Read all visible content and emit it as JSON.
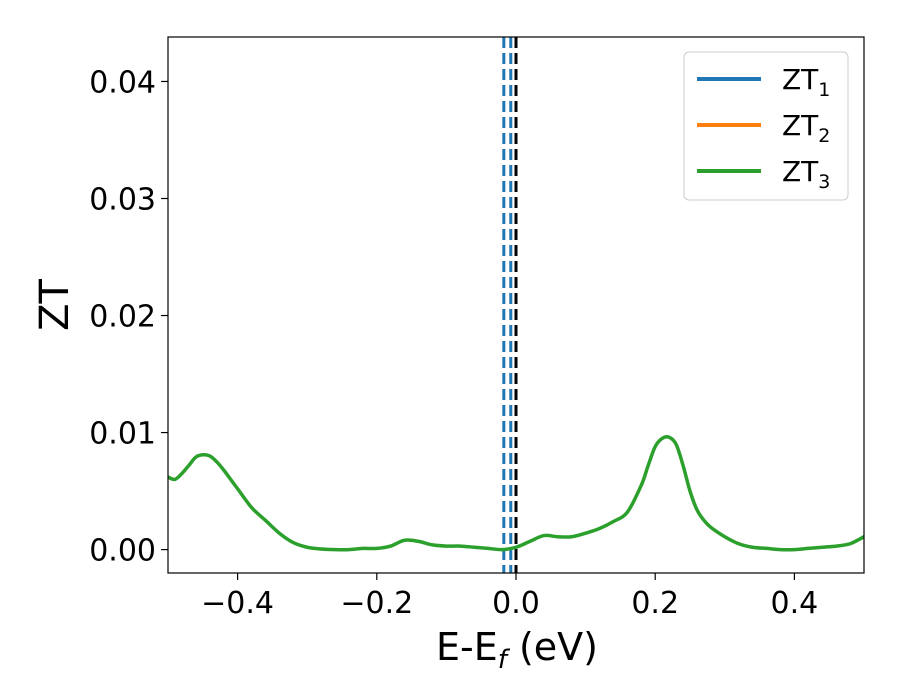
{
  "chart_data": {
    "type": "line",
    "xlabel": "E-E",
    "xlabel_sub": "f",
    "xlabel_unit": " (eV)",
    "ylabel": "ZT",
    "xlim": [
      -0.5,
      0.5
    ],
    "ylim": [
      -0.002,
      0.0438
    ],
    "xticks": [
      -0.4,
      -0.2,
      0.0,
      0.2,
      0.4
    ],
    "xtick_labels": [
      "−0.4",
      "−0.2",
      "0.0",
      "0.2",
      "0.4"
    ],
    "yticks": [
      0.0,
      0.01,
      0.02,
      0.03,
      0.04
    ],
    "ytick_labels": [
      "0.00",
      "0.01",
      "0.02",
      "0.03",
      "0.04"
    ],
    "grid": false,
    "legend_position": "top-right",
    "legend": [
      {
        "base": "ZT",
        "sub": "1",
        "color": "#1f77b4"
      },
      {
        "base": "ZT",
        "sub": "2",
        "color": "#ff7f0e"
      },
      {
        "base": "ZT",
        "sub": "3",
        "color": "#2ca02c"
      }
    ],
    "vlines": [
      {
        "x": -0.0175,
        "color": "#1f77b4",
        "style": "dashed"
      },
      {
        "x": -0.0075,
        "color": "#1f77b4",
        "style": "dashed"
      },
      {
        "x": 0.0,
        "color": "#000000",
        "style": "dashed"
      }
    ],
    "series": [
      {
        "color": "#2ca02c",
        "x": [
          -0.5,
          -0.49,
          -0.48,
          -0.47,
          -0.46,
          -0.45,
          -0.44,
          -0.43,
          -0.42,
          -0.41,
          -0.4,
          -0.38,
          -0.36,
          -0.34,
          -0.32,
          -0.3,
          -0.28,
          -0.26,
          -0.24,
          -0.22,
          -0.2,
          -0.18,
          -0.16,
          -0.14,
          -0.12,
          -0.1,
          -0.08,
          -0.06,
          -0.04,
          -0.02,
          0.0,
          0.02,
          0.04,
          0.06,
          0.08,
          0.1,
          0.12,
          0.14,
          0.16,
          0.18,
          0.19,
          0.2,
          0.21,
          0.22,
          0.23,
          0.24,
          0.25,
          0.26,
          0.27,
          0.28,
          0.3,
          0.32,
          0.34,
          0.36,
          0.38,
          0.4,
          0.42,
          0.44,
          0.46,
          0.48,
          0.5
        ],
        "y": [
          0.0062,
          0.006,
          0.0065,
          0.0072,
          0.0079,
          0.0081,
          0.008,
          0.0075,
          0.0068,
          0.006,
          0.0052,
          0.0036,
          0.0025,
          0.0014,
          0.0006,
          0.0002,
          5e-05,
          0.0,
          0.0,
          0.0001,
          0.0001,
          0.0003,
          0.0008,
          0.0007,
          0.0004,
          0.0003,
          0.0003,
          0.0002,
          0.0001,
          0.0,
          0.0002,
          0.0007,
          0.0012,
          0.0011,
          0.0011,
          0.0014,
          0.0018,
          0.0024,
          0.0032,
          0.0055,
          0.0072,
          0.0088,
          0.0095,
          0.0096,
          0.009,
          0.0072,
          0.005,
          0.0034,
          0.0025,
          0.0019,
          0.0011,
          0.0005,
          0.0002,
          0.0001,
          0.0,
          0.0,
          0.0001,
          0.0002,
          0.0003,
          0.0005,
          0.0011
        ]
      }
    ]
  }
}
